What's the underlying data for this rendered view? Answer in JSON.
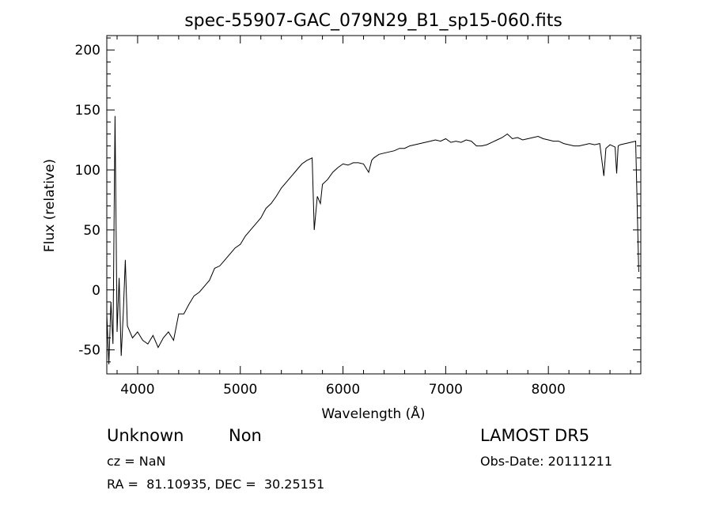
{
  "chart_data": {
    "type": "line",
    "title": "spec-55907-GAC_079N29_B1_sp15-060.fits",
    "xlabel": "Wavelength (Å)",
    "ylabel": "Flux (relative)",
    "xlim": [
      3700,
      8900
    ],
    "ylim": [
      -70,
      212
    ],
    "xticks": [
      4000,
      5000,
      6000,
      7000,
      8000
    ],
    "yticks": [
      -50,
      0,
      50,
      100,
      150,
      200
    ],
    "grid": false,
    "series": [
      {
        "x": [
          3700,
          3720,
          3740,
          3760,
          3780,
          3800,
          3820,
          3840,
          3860,
          3880,
          3900,
          3950,
          4000,
          4050,
          4100,
          4150,
          4200,
          4250,
          4300,
          4350,
          4400,
          4450,
          4500,
          4550,
          4600,
          4650,
          4700,
          4750,
          4800,
          4850,
          4900,
          4950,
          5000,
          5050,
          5100,
          5150,
          5200,
          5250,
          5300,
          5350,
          5400,
          5450,
          5500,
          5550,
          5600,
          5650,
          5700,
          5720,
          5750,
          5780,
          5800,
          5850,
          5900,
          5950,
          6000,
          6050,
          6100,
          6150,
          6200,
          6250,
          6280,
          6300,
          6350,
          6400,
          6450,
          6500,
          6550,
          6600,
          6650,
          6700,
          6750,
          6800,
          6850,
          6900,
          6950,
          7000,
          7050,
          7100,
          7150,
          7200,
          7250,
          7300,
          7350,
          7400,
          7450,
          7500,
          7550,
          7600,
          7650,
          7700,
          7750,
          7800,
          7850,
          7900,
          7950,
          8000,
          8050,
          8100,
          8150,
          8200,
          8250,
          8300,
          8350,
          8400,
          8450,
          8500,
          8540,
          8560,
          8600,
          8650,
          8665,
          8680,
          8700,
          8750,
          8800,
          8850,
          8880
        ],
        "y": [
          -20,
          -62,
          -10,
          -45,
          145,
          -35,
          10,
          -55,
          -20,
          25,
          -30,
          -40,
          -35,
          -42,
          -45,
          -38,
          -48,
          -40,
          -35,
          -42,
          -20,
          -20,
          -12,
          -5,
          -2,
          3,
          8,
          18,
          20,
          25,
          30,
          35,
          38,
          45,
          50,
          55,
          60,
          68,
          72,
          78,
          85,
          90,
          95,
          100,
          105,
          108,
          110,
          50,
          78,
          72,
          88,
          92,
          98,
          102,
          105,
          104,
          106,
          106,
          105,
          98,
          108,
          110,
          113,
          114,
          115,
          116,
          118,
          118,
          120,
          121,
          122,
          123,
          124,
          125,
          124,
          126,
          123,
          124,
          123,
          125,
          124,
          120,
          120,
          121,
          123,
          125,
          127,
          130,
          126,
          127,
          125,
          126,
          127,
          128,
          126,
          125,
          124,
          124,
          122,
          121,
          120,
          120,
          121,
          122,
          121,
          122,
          95,
          118,
          121,
          119,
          97,
          120,
          121,
          122,
          123,
          124,
          15
        ]
      }
    ]
  },
  "info": {
    "class_label": "Unknown",
    "subclass_label": "Non",
    "survey_label": "LAMOST DR5",
    "cz_text": "cz = NaN",
    "obs_date_text": "Obs-Date: 20111211",
    "coords_text": "RA =  81.10935, DEC =  30.25151"
  }
}
